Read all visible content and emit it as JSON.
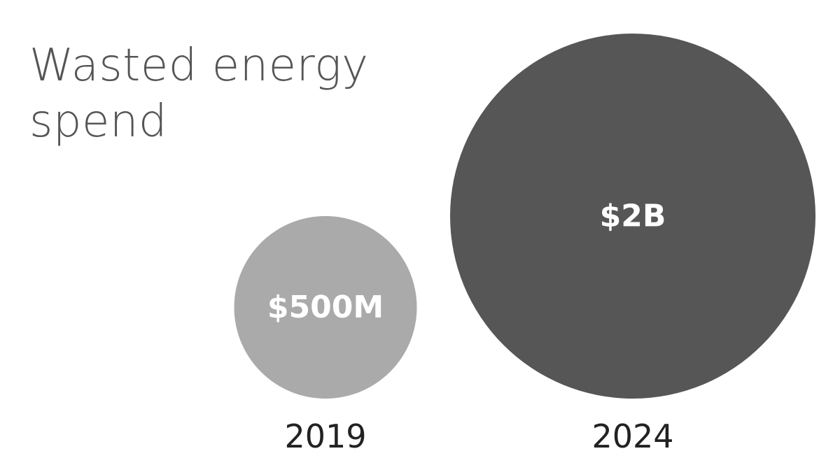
{
  "chart_data": {
    "type": "bubble",
    "title": "Wasted energy spend",
    "categories": [
      "2019",
      "2024"
    ],
    "values": [
      500000000,
      2000000000
    ],
    "value_labels": [
      "$500M",
      "$2B"
    ],
    "unit": "USD",
    "colors": [
      "#aaaaaa",
      "#565656"
    ],
    "grid": false,
    "legend": "none"
  }
}
